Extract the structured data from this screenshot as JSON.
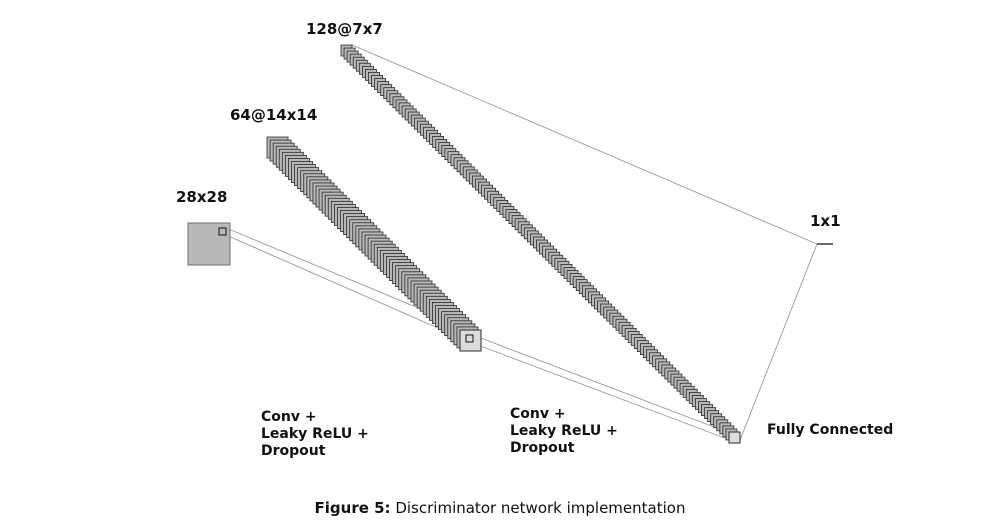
{
  "layers": [
    {
      "label": "28x28",
      "maps": 1
    },
    {
      "label": "64@14x14",
      "maps": 64
    },
    {
      "label": "128@7x7",
      "maps": 128
    },
    {
      "label": "1x1",
      "maps": 1
    }
  ],
  "operations": [
    {
      "lines": [
        "Conv +",
        "Leaky ReLU +",
        "Dropout"
      ]
    },
    {
      "lines": [
        "Conv +",
        "Leaky ReLU +",
        "Dropout"
      ]
    },
    {
      "lines": [
        "Fully Connected"
      ]
    }
  ],
  "caption": {
    "prefix": "Figure 5:",
    "text": "Discriminator network implementation"
  },
  "colors": {
    "map_fill": "#b8b8b8",
    "map_stroke": "#2a2a2a",
    "last_map_fill": "#dcdcdc",
    "connector": "#9a9a9a"
  }
}
